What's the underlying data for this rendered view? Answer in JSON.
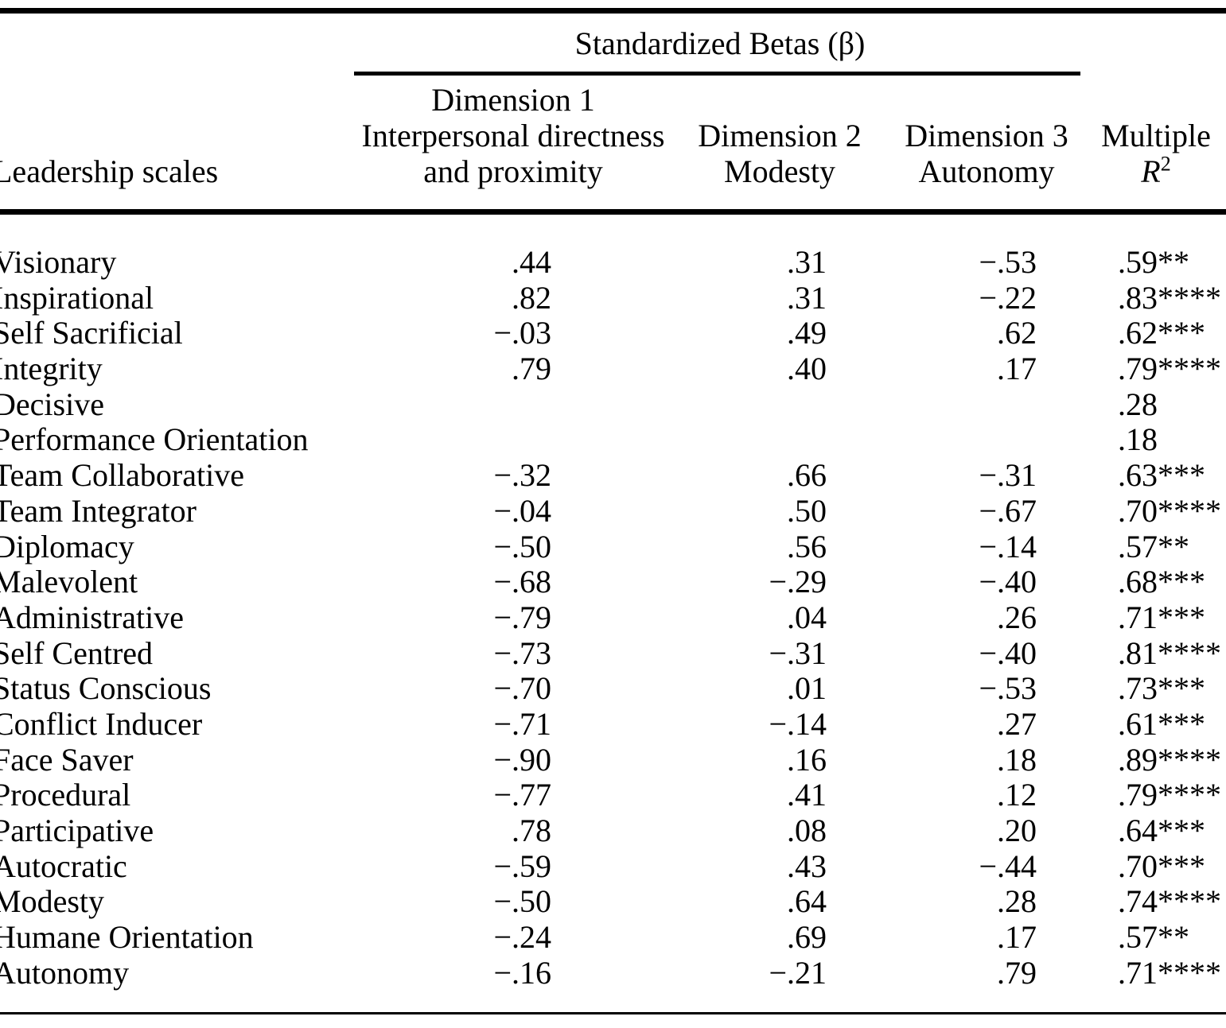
{
  "table": {
    "spanner_title": "Standardized Betas (β)",
    "columns": {
      "leadership": "Leadership scales",
      "dim1": [
        "Dimension 1",
        "Interpersonal directness",
        "and proximity"
      ],
      "dim2": [
        "Dimension 2",
        "Modesty"
      ],
      "dim3": [
        "Dimension 3",
        "Autonomy"
      ],
      "multiple": {
        "line1": "Multiple",
        "symbol": "R",
        "sup": "2"
      }
    },
    "rows": [
      {
        "label": "Visionary",
        "d1": ".44",
        "d2": ".31",
        "d3": "−.53",
        "r2": ".59**"
      },
      {
        "label": "Inspirational",
        "d1": ".82",
        "d2": ".31",
        "d3": "−.22",
        "r2": ".83****"
      },
      {
        "label": "Self Sacrificial",
        "d1": "−.03",
        "d2": ".49",
        "d3": ".62",
        "r2": ".62***"
      },
      {
        "label": "Integrity",
        "d1": ".79",
        "d2": ".40",
        "d3": ".17",
        "r2": ".79****"
      },
      {
        "label": "Decisive",
        "d1": "",
        "d2": "",
        "d3": "",
        "r2": ".28"
      },
      {
        "label": "Performance Orientation",
        "d1": "",
        "d2": "",
        "d3": "",
        "r2": ".18"
      },
      {
        "label": "Team Collaborative",
        "d1": "−.32",
        "d2": ".66",
        "d3": "−.31",
        "r2": ".63***"
      },
      {
        "label": "Team Integrator",
        "d1": "−.04",
        "d2": ".50",
        "d3": "−.67",
        "r2": ".70****"
      },
      {
        "label": "Diplomacy",
        "d1": "−.50",
        "d2": ".56",
        "d3": "−.14",
        "r2": ".57**"
      },
      {
        "label": "Malevolent",
        "d1": "−.68",
        "d2": "−.29",
        "d3": "−.40",
        "r2": ".68***"
      },
      {
        "label": "Administrative",
        "d1": "−.79",
        "d2": ".04",
        "d3": ".26",
        "r2": ".71***"
      },
      {
        "label": "Self Centred",
        "d1": "−.73",
        "d2": "−.31",
        "d3": "−.40",
        "r2": ".81****"
      },
      {
        "label": "Status Conscious",
        "d1": "−.70",
        "d2": ".01",
        "d3": "−.53",
        "r2": ".73***"
      },
      {
        "label": "Conflict Inducer",
        "d1": "−.71",
        "d2": "−.14",
        "d3": ".27",
        "r2": ".61***"
      },
      {
        "label": "Face Saver",
        "d1": "−.90",
        "d2": ".16",
        "d3": ".18",
        "r2": ".89****"
      },
      {
        "label": "Procedural",
        "d1": "−.77",
        "d2": ".41",
        "d3": ".12",
        "r2": ".79****"
      },
      {
        "label": "Participative",
        "d1": ".78",
        "d2": ".08",
        "d3": ".20",
        "r2": ".64***"
      },
      {
        "label": "Autocratic",
        "d1": "−.59",
        "d2": ".43",
        "d3": "−.44",
        "r2": ".70***"
      },
      {
        "label": "Modesty",
        "d1": "−.50",
        "d2": ".64",
        "d3": ".28",
        "r2": ".74****"
      },
      {
        "label": "Humane Orientation",
        "d1": "−.24",
        "d2": ".69",
        "d3": ".17",
        "r2": ".57**"
      },
      {
        "label": "Autonomy",
        "d1": "−.16",
        "d2": "−.21",
        "d3": ".79",
        "r2": ".71****"
      }
    ]
  }
}
